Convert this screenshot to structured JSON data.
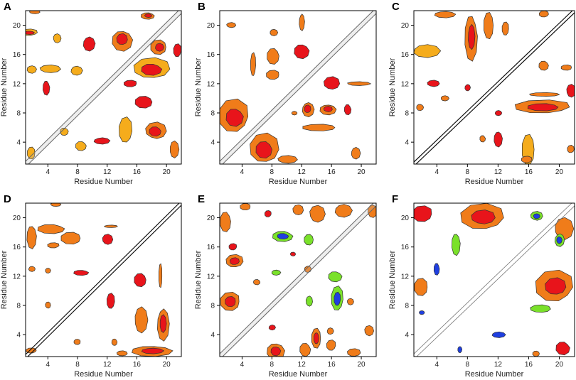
{
  "figure": {
    "description_free": true
  },
  "palette": {
    "red": "#e8141b",
    "orange": "#f07c1a",
    "yellow": "#f5ac1c",
    "green": "#7ae12a",
    "blue": "#1f3fe0"
  },
  "chart_data": [
    {
      "panel": "A",
      "type": "heatmap",
      "xlabel": "Residue Number",
      "ylabel": "Residue Number",
      "xticks": [
        4,
        8,
        12,
        16,
        20
      ],
      "yticks": [
        4,
        8,
        12,
        16,
        20
      ],
      "xlim": [
        1,
        22
      ],
      "ylim": [
        1,
        22
      ],
      "diagonal": "double",
      "contacts": [
        {
          "x": 1.5,
          "y": 19,
          "w": 2.6,
          "h": 1.0,
          "level": "yellow",
          "core": "red"
        },
        {
          "x": 2.2,
          "y": 21.8,
          "w": 1.6,
          "h": 0.6,
          "level": "orange"
        },
        {
          "x": 5.2,
          "y": 18.2,
          "w": 1.2,
          "h": 1.4,
          "level": "yellow"
        },
        {
          "x": 9.5,
          "y": 17.5,
          "w": 1.8,
          "h": 2.2,
          "level": "red"
        },
        {
          "x": 14,
          "y": 18,
          "w": 3.0,
          "h": 3.2,
          "level": "orange",
          "core": "red"
        },
        {
          "x": 17.5,
          "y": 21.3,
          "w": 2.0,
          "h": 1.0,
          "level": "orange",
          "core": "red"
        },
        {
          "x": 19,
          "y": 17,
          "w": 2.4,
          "h": 2.2,
          "level": "orange",
          "core": "red"
        },
        {
          "x": 21.5,
          "y": 16.5,
          "w": 1.2,
          "h": 2.0,
          "level": "red"
        },
        {
          "x": 18,
          "y": 14,
          "w": 5.5,
          "h": 3.2,
          "level": "yellow",
          "core": "red"
        },
        {
          "x": 4.2,
          "y": 14,
          "w": 3.2,
          "h": 1.2,
          "level": "yellow"
        },
        {
          "x": 7.8,
          "y": 13.8,
          "w": 1.8,
          "h": 1.4,
          "level": "yellow"
        },
        {
          "x": 1.8,
          "y": 14,
          "w": 1.4,
          "h": 1.2,
          "level": "yellow"
        },
        {
          "x": 3.8,
          "y": 11.5,
          "w": 1.0,
          "h": 2.2,
          "level": "red"
        },
        {
          "x": 17,
          "y": 9.5,
          "w": 2.6,
          "h": 1.8,
          "level": "red"
        },
        {
          "x": 15.2,
          "y": 12,
          "w": 2.0,
          "h": 1.0,
          "level": "red"
        },
        {
          "x": 14.5,
          "y": 5.5,
          "w": 2.0,
          "h": 4.0,
          "level": "yellow"
        },
        {
          "x": 18.5,
          "y": 5.5,
          "w": 3.2,
          "h": 2.6,
          "level": "orange",
          "core": "red"
        },
        {
          "x": 21,
          "y": 3,
          "w": 1.4,
          "h": 2.6,
          "level": "orange"
        },
        {
          "x": 11.2,
          "y": 4.2,
          "w": 2.4,
          "h": 1.0,
          "level": "red"
        },
        {
          "x": 6.2,
          "y": 5.5,
          "w": 1.2,
          "h": 1.2,
          "level": "yellow"
        },
        {
          "x": 8.5,
          "y": 3.5,
          "w": 1.6,
          "h": 1.4,
          "level": "yellow"
        },
        {
          "x": 1.8,
          "y": 2.5,
          "w": 1.2,
          "h": 1.8,
          "level": "yellow"
        }
      ]
    },
    {
      "panel": "B",
      "type": "heatmap",
      "xlabel": "Residue Number",
      "ylabel": "Residue Number",
      "xticks": [
        4,
        8,
        12,
        16,
        20
      ],
      "yticks": [
        4,
        8,
        12,
        16,
        20
      ],
      "xlim": [
        1,
        22
      ],
      "ylim": [
        1,
        22
      ],
      "diagonal": "double",
      "contacts": [
        {
          "x": 2.5,
          "y": 20,
          "w": 1.4,
          "h": 0.8,
          "level": "orange"
        },
        {
          "x": 8.2,
          "y": 19,
          "w": 1.2,
          "h": 1.0,
          "level": "orange"
        },
        {
          "x": 12,
          "y": 20.5,
          "w": 0.8,
          "h": 2.6,
          "level": "orange"
        },
        {
          "x": 12,
          "y": 16.5,
          "w": 2.2,
          "h": 2.2,
          "level": "red"
        },
        {
          "x": 8.2,
          "y": 15.8,
          "w": 1.8,
          "h": 2.4,
          "level": "orange"
        },
        {
          "x": 8.2,
          "y": 13.2,
          "w": 2.0,
          "h": 1.4,
          "level": "orange"
        },
        {
          "x": 5.5,
          "y": 14.5,
          "w": 0.8,
          "h": 3.6,
          "level": "orange"
        },
        {
          "x": 16,
          "y": 12,
          "w": 2.4,
          "h": 2.0,
          "level": "red"
        },
        {
          "x": 19.5,
          "y": 12,
          "w": 3.6,
          "h": 0.6,
          "level": "orange"
        },
        {
          "x": 12.8,
          "y": 8.5,
          "w": 1.8,
          "h": 2.2,
          "level": "orange",
          "core": "red"
        },
        {
          "x": 15.5,
          "y": 8.5,
          "w": 2.4,
          "h": 1.6,
          "level": "orange",
          "core": "red"
        },
        {
          "x": 18.2,
          "y": 8.5,
          "w": 1.0,
          "h": 1.6,
          "level": "red"
        },
        {
          "x": 14.5,
          "y": 6,
          "w": 5.0,
          "h": 1.0,
          "level": "orange"
        },
        {
          "x": 3,
          "y": 7.5,
          "w": 4.6,
          "h": 5.0,
          "level": "orange",
          "core": "red"
        },
        {
          "x": 7,
          "y": 3,
          "w": 4.4,
          "h": 4.6,
          "level": "orange",
          "core": "red"
        },
        {
          "x": 10,
          "y": 1.6,
          "w": 3.0,
          "h": 1.2,
          "level": "orange"
        },
        {
          "x": 19.2,
          "y": 2.5,
          "w": 1.4,
          "h": 1.8,
          "level": "orange"
        },
        {
          "x": 11,
          "y": 8,
          "w": 0.8,
          "h": 0.6,
          "level": "orange"
        }
      ]
    },
    {
      "panel": "C",
      "type": "heatmap",
      "xlabel": "Residue Number",
      "ylabel": "Residue Number",
      "xticks": [
        4,
        8,
        12,
        16,
        20
      ],
      "yticks": [
        4,
        8,
        12,
        16,
        20
      ],
      "xlim": [
        1,
        22
      ],
      "ylim": [
        1,
        22
      ],
      "diagonal": "single",
      "contacts": [
        {
          "x": 2.5,
          "y": 16.5,
          "w": 4.0,
          "h": 2.0,
          "level": "yellow"
        },
        {
          "x": 5,
          "y": 21.5,
          "w": 3.0,
          "h": 1.0,
          "level": "orange"
        },
        {
          "x": 8.5,
          "y": 18.5,
          "w": 1.8,
          "h": 7.0,
          "level": "orange",
          "core": "red"
        },
        {
          "x": 10.8,
          "y": 20,
          "w": 1.4,
          "h": 4.0,
          "level": "orange"
        },
        {
          "x": 13,
          "y": 19.5,
          "w": 1.0,
          "h": 2.0,
          "level": "orange"
        },
        {
          "x": 18,
          "y": 21.5,
          "w": 1.4,
          "h": 1.0,
          "level": "orange"
        },
        {
          "x": 3.5,
          "y": 12,
          "w": 1.8,
          "h": 1.0,
          "level": "red"
        },
        {
          "x": 5,
          "y": 10,
          "w": 1.2,
          "h": 0.8,
          "level": "orange"
        },
        {
          "x": 8,
          "y": 11.5,
          "w": 0.8,
          "h": 1.0,
          "level": "red"
        },
        {
          "x": 1.8,
          "y": 8.8,
          "w": 1.0,
          "h": 1.0,
          "level": "orange"
        },
        {
          "x": 18,
          "y": 14.5,
          "w": 1.4,
          "h": 1.4,
          "level": "orange"
        },
        {
          "x": 21,
          "y": 14.2,
          "w": 1.6,
          "h": 0.8,
          "level": "orange"
        },
        {
          "x": 18,
          "y": 8.8,
          "w": 8.2,
          "h": 2.0,
          "level": "orange",
          "core": "red"
        },
        {
          "x": 18,
          "y": 10.5,
          "w": 4.4,
          "h": 0.6,
          "level": "orange"
        },
        {
          "x": 21.5,
          "y": 11,
          "w": 1.4,
          "h": 2.0,
          "level": "red"
        },
        {
          "x": 12,
          "y": 8,
          "w": 1.0,
          "h": 0.8,
          "level": "red"
        },
        {
          "x": 12,
          "y": 4.5,
          "w": 1.2,
          "h": 2.4,
          "level": "red"
        },
        {
          "x": 10,
          "y": 4.5,
          "w": 0.8,
          "h": 1.0,
          "level": "orange"
        },
        {
          "x": 16,
          "y": 3,
          "w": 1.8,
          "h": 4.6,
          "level": "yellow"
        },
        {
          "x": 15.8,
          "y": 1.6,
          "w": 1.6,
          "h": 1.0,
          "level": "orange"
        },
        {
          "x": 21.5,
          "y": 3,
          "w": 1.0,
          "h": 1.2,
          "level": "orange"
        }
      ]
    },
    {
      "panel": "D",
      "type": "heatmap",
      "xlabel": "Residue Number",
      "ylabel": "Residue Number",
      "xticks": [
        4,
        8,
        12,
        16,
        20
      ],
      "yticks": [
        4,
        8,
        12,
        16,
        20
      ],
      "xlim": [
        1,
        22
      ],
      "ylim": [
        1,
        22
      ],
      "diagonal": "single",
      "contacts": [
        {
          "x": 1.8,
          "y": 17.5,
          "w": 1.4,
          "h": 3.6,
          "level": "orange"
        },
        {
          "x": 4.5,
          "y": 18.5,
          "w": 4.0,
          "h": 1.4,
          "level": "orange"
        },
        {
          "x": 7.2,
          "y": 17.2,
          "w": 3.0,
          "h": 1.8,
          "level": "orange"
        },
        {
          "x": 4.8,
          "y": 16.2,
          "w": 1.8,
          "h": 0.8,
          "level": "orange"
        },
        {
          "x": 12.5,
          "y": 18.8,
          "w": 2.0,
          "h": 0.4,
          "level": "orange"
        },
        {
          "x": 12,
          "y": 17,
          "w": 1.6,
          "h": 1.6,
          "level": "red"
        },
        {
          "x": 1.8,
          "y": 13,
          "w": 1.0,
          "h": 0.8,
          "level": "orange"
        },
        {
          "x": 4,
          "y": 12.8,
          "w": 0.8,
          "h": 0.8,
          "level": "orange"
        },
        {
          "x": 8.5,
          "y": 12.5,
          "w": 2.2,
          "h": 0.8,
          "level": "red"
        },
        {
          "x": 16.5,
          "y": 11.5,
          "w": 1.8,
          "h": 2.0,
          "level": "red"
        },
        {
          "x": 19.2,
          "y": 12,
          "w": 0.5,
          "h": 3.6,
          "level": "orange"
        },
        {
          "x": 12.5,
          "y": 8.5,
          "w": 1.2,
          "h": 2.4,
          "level": "red"
        },
        {
          "x": 4,
          "y": 8,
          "w": 0.8,
          "h": 1.0,
          "level": "orange"
        },
        {
          "x": 16.5,
          "y": 6,
          "w": 2.0,
          "h": 4.0,
          "level": "orange"
        },
        {
          "x": 19.5,
          "y": 5.5,
          "w": 1.8,
          "h": 5.0,
          "level": "orange",
          "core": "red"
        },
        {
          "x": 18,
          "y": 1.8,
          "w": 6.0,
          "h": 1.6,
          "level": "orange",
          "core": "red"
        },
        {
          "x": 13,
          "y": 3,
          "w": 0.8,
          "h": 1.0,
          "level": "orange"
        },
        {
          "x": 8,
          "y": 3,
          "w": 1.0,
          "h": 0.8,
          "level": "orange"
        },
        {
          "x": 1.8,
          "y": 1.8,
          "w": 1.6,
          "h": 0.8,
          "level": "orange"
        },
        {
          "x": 14,
          "y": 1.4,
          "w": 1.6,
          "h": 0.8,
          "level": "orange"
        },
        {
          "x": 5,
          "y": 21.8,
          "w": 1.6,
          "h": 0.6,
          "level": "orange"
        }
      ]
    },
    {
      "panel": "E",
      "type": "heatmap",
      "xlabel": "Residue Number",
      "ylabel": "Residue Number",
      "xticks": [
        4,
        8,
        12,
        16,
        20
      ],
      "yticks": [
        4,
        8,
        12,
        16,
        20
      ],
      "xlim": [
        1,
        22
      ],
      "ylim": [
        1,
        22
      ],
      "diagonal": "double",
      "contacts": [
        {
          "x": 1.8,
          "y": 19.5,
          "w": 1.6,
          "h": 3.0,
          "level": "orange"
        },
        {
          "x": 4.5,
          "y": 21.5,
          "w": 1.6,
          "h": 1.0,
          "level": "orange"
        },
        {
          "x": 7.5,
          "y": 20.5,
          "w": 1.0,
          "h": 1.0,
          "level": "red"
        },
        {
          "x": 11.5,
          "y": 21,
          "w": 1.6,
          "h": 1.6,
          "level": "orange"
        },
        {
          "x": 14,
          "y": 20.5,
          "w": 2.4,
          "h": 2.6,
          "level": "orange"
        },
        {
          "x": 17.5,
          "y": 21,
          "w": 2.6,
          "h": 2.0,
          "level": "orange"
        },
        {
          "x": 21.5,
          "y": 21,
          "w": 1.4,
          "h": 2.0,
          "level": "orange"
        },
        {
          "x": 9.5,
          "y": 17.5,
          "w": 3.0,
          "h": 1.6,
          "level": "green",
          "core": "blue"
        },
        {
          "x": 13,
          "y": 17,
          "w": 1.4,
          "h": 1.6,
          "level": "green"
        },
        {
          "x": 2.8,
          "y": 16,
          "w": 1.2,
          "h": 1.0,
          "level": "red"
        },
        {
          "x": 3,
          "y": 14,
          "w": 2.6,
          "h": 2.0,
          "level": "orange",
          "core": "red"
        },
        {
          "x": 10.8,
          "y": 15,
          "w": 0.8,
          "h": 0.6,
          "level": "red"
        },
        {
          "x": 8.5,
          "y": 12.5,
          "w": 1.4,
          "h": 0.8,
          "level": "green"
        },
        {
          "x": 12.8,
          "y": 13,
          "w": 1.0,
          "h": 1.0,
          "level": "orange"
        },
        {
          "x": 16.5,
          "y": 12,
          "w": 2.0,
          "h": 1.6,
          "level": "green"
        },
        {
          "x": 6,
          "y": 11.2,
          "w": 1.0,
          "h": 0.8,
          "level": "orange"
        },
        {
          "x": 2.5,
          "y": 8.5,
          "w": 3.0,
          "h": 2.8,
          "level": "orange",
          "core": "red"
        },
        {
          "x": 16.8,
          "y": 8.8,
          "w": 1.8,
          "h": 3.8,
          "level": "green",
          "core": "blue"
        },
        {
          "x": 13,
          "y": 8.5,
          "w": 1.0,
          "h": 1.6,
          "level": "green"
        },
        {
          "x": 18.5,
          "y": 8.5,
          "w": 1.0,
          "h": 1.0,
          "level": "orange"
        },
        {
          "x": 8,
          "y": 5,
          "w": 1.0,
          "h": 0.8,
          "level": "red"
        },
        {
          "x": 8.5,
          "y": 1.8,
          "w": 2.6,
          "h": 2.6,
          "level": "orange",
          "core": "red"
        },
        {
          "x": 12.5,
          "y": 2,
          "w": 1.6,
          "h": 2.0,
          "level": "orange"
        },
        {
          "x": 14,
          "y": 3.5,
          "w": 1.4,
          "h": 3.0,
          "level": "orange",
          "core": "red"
        },
        {
          "x": 16,
          "y": 2.5,
          "w": 1.4,
          "h": 1.6,
          "level": "orange"
        },
        {
          "x": 19,
          "y": 1.5,
          "w": 2.0,
          "h": 1.2,
          "level": "orange"
        },
        {
          "x": 21,
          "y": 4.5,
          "w": 1.4,
          "h": 1.6,
          "level": "orange"
        },
        {
          "x": 15.8,
          "y": 4.5,
          "w": 1.0,
          "h": 1.0,
          "level": "orange"
        }
      ]
    },
    {
      "panel": "F",
      "type": "heatmap",
      "xlabel": "Residue Number",
      "ylabel": "Residue Number",
      "xticks": [
        4,
        8,
        12,
        16,
        20
      ],
      "yticks": [
        4,
        8,
        12,
        16,
        20
      ],
      "xlim": [
        1,
        22
      ],
      "ylim": [
        1,
        22
      ],
      "diagonal": "thin",
      "contacts": [
        {
          "x": 2.2,
          "y": 20.5,
          "w": 3.0,
          "h": 2.4,
          "level": "red"
        },
        {
          "x": 10,
          "y": 20,
          "w": 6.4,
          "h": 4.0,
          "level": "orange",
          "core": "red"
        },
        {
          "x": 17,
          "y": 20.2,
          "w": 1.8,
          "h": 1.4,
          "level": "green",
          "core": "blue"
        },
        {
          "x": 20.5,
          "y": 18.5,
          "w": 2.8,
          "h": 3.4,
          "level": "orange"
        },
        {
          "x": 20,
          "y": 17,
          "w": 1.4,
          "h": 2.0,
          "level": "green",
          "core": "blue"
        },
        {
          "x": 6.5,
          "y": 16.5,
          "w": 1.2,
          "h": 3.4,
          "level": "green"
        },
        {
          "x": 4,
          "y": 13,
          "w": 0.8,
          "h": 1.8,
          "level": "blue"
        },
        {
          "x": 2,
          "y": 10.5,
          "w": 2.0,
          "h": 2.6,
          "level": "orange"
        },
        {
          "x": 19.5,
          "y": 10.5,
          "w": 5.6,
          "h": 4.8,
          "level": "orange",
          "core": "red"
        },
        {
          "x": 17.5,
          "y": 7.5,
          "w": 3.0,
          "h": 1.2,
          "level": "green"
        },
        {
          "x": 2,
          "y": 7,
          "w": 0.8,
          "h": 0.6,
          "level": "blue"
        },
        {
          "x": 12,
          "y": 4,
          "w": 2.0,
          "h": 0.9,
          "level": "blue"
        },
        {
          "x": 7,
          "y": 2,
          "w": 0.6,
          "h": 1.0,
          "level": "blue"
        },
        {
          "x": 20.5,
          "y": 2.2,
          "w": 2.0,
          "h": 2.0,
          "level": "red"
        },
        {
          "x": 17,
          "y": 1.4,
          "w": 1.0,
          "h": 0.8,
          "level": "orange"
        }
      ]
    }
  ]
}
